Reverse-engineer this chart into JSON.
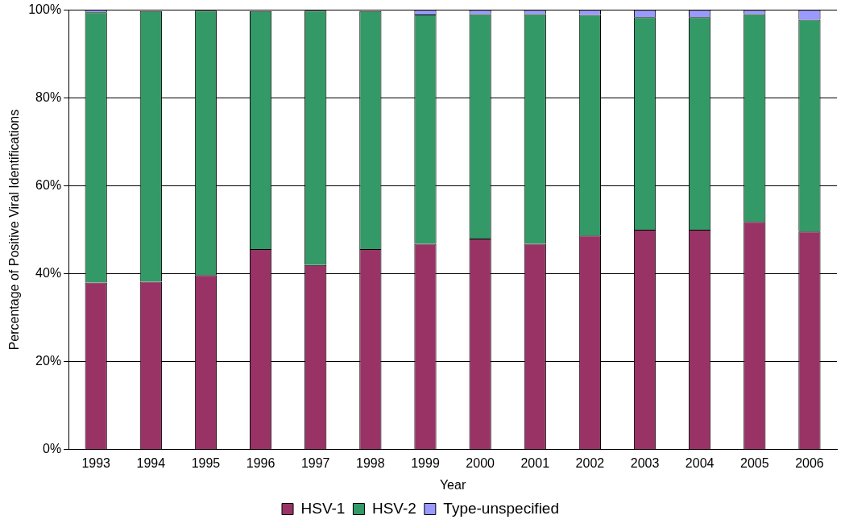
{
  "chart_data": {
    "type": "bar",
    "stacked": true,
    "xlabel": "Year",
    "ylabel": "Percentage of Positive Viral Identifications",
    "categories": [
      "1993",
      "1994",
      "1995",
      "1996",
      "1997",
      "1998",
      "1999",
      "2000",
      "2001",
      "2002",
      "2003",
      "2004",
      "2005",
      "2006"
    ],
    "series": [
      {
        "name": "HSV-1",
        "color": "#993366",
        "values": [
          38,
          38.2,
          39.7,
          45.6,
          42,
          45.6,
          46.8,
          48,
          46.8,
          48.7,
          50,
          50,
          51.8,
          49.6
        ]
      },
      {
        "name": "HSV-2",
        "color": "#339966",
        "values": [
          61.5,
          61.6,
          60.2,
          54.2,
          57.9,
          54.2,
          52.2,
          51.1,
          52.3,
          50.2,
          48.4,
          48.4,
          47.3,
          48.2
        ]
      },
      {
        "name": "Type-unspecified",
        "color": "#9999ff",
        "values": [
          0.5,
          null,
          null,
          null,
          null,
          null,
          1.0,
          0.9,
          0.9,
          1.1,
          1.6,
          1.6,
          0.9,
          2.2
        ]
      }
    ],
    "ylim": [
      0,
      100
    ],
    "yticks": [
      {
        "value": 0,
        "label": "0%"
      },
      {
        "value": 20,
        "label": "20%"
      },
      {
        "value": 40,
        "label": "40%"
      },
      {
        "value": 60,
        "label": "60%"
      },
      {
        "value": 80,
        "label": "80%"
      },
      {
        "value": 100,
        "label": "100%"
      }
    ],
    "grid": "y",
    "legend": "bottom"
  }
}
